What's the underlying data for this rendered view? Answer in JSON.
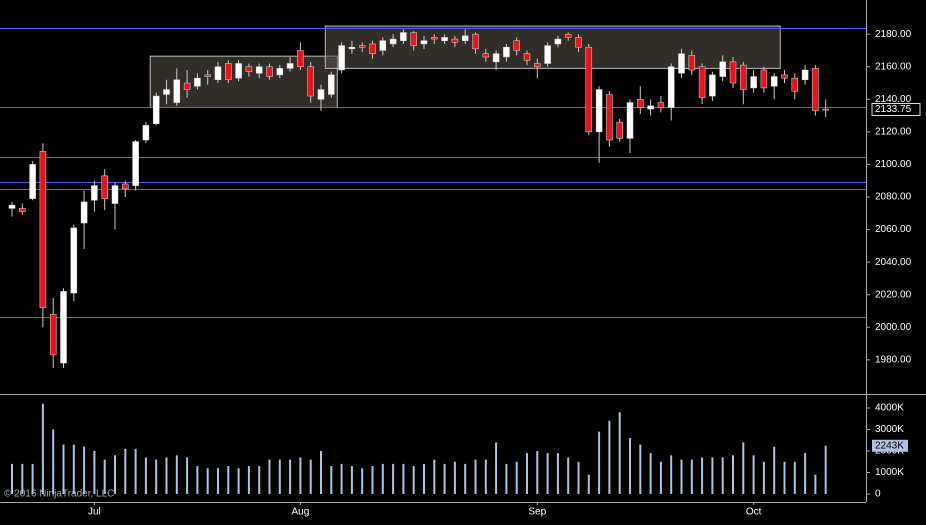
{
  "copyright": "© 2016 NinjaTrader, LLC",
  "chart_data": [
    {
      "type": "candlestick",
      "categories": [
        null,
        null,
        null,
        null,
        null,
        null,
        null,
        null,
        "Jul",
        null,
        null,
        null,
        null,
        null,
        null,
        null,
        null,
        null,
        null,
        null,
        null,
        null,
        null,
        null,
        null,
        null,
        null,
        null,
        "Aug",
        null,
        null,
        null,
        null,
        null,
        null,
        null,
        null,
        null,
        null,
        null,
        null,
        null,
        null,
        null,
        null,
        null,
        null,
        null,
        null,
        null,
        null,
        "Sep",
        null,
        null,
        null,
        null,
        null,
        null,
        null,
        null,
        null,
        null,
        null,
        null,
        null,
        null,
        null,
        null,
        null,
        null,
        null,
        null,
        "Oct",
        null,
        null,
        null,
        null,
        null,
        null,
        null
      ],
      "open": [
        2073,
        2073,
        2079,
        2108,
        2008,
        1978,
        2021,
        2064,
        2078,
        2093,
        2076,
        2088,
        2087,
        2115,
        2125,
        2143,
        2138,
        2150,
        2148,
        2155,
        2152,
        2162,
        2153,
        2160,
        2156,
        2160,
        2155,
        2159,
        2170,
        2160,
        2140,
        2143,
        2158,
        2171,
        2173,
        2174,
        2170,
        2174,
        2176,
        2181,
        2174,
        2178,
        2176,
        2177,
        2176,
        2180,
        2168,
        2163,
        2166,
        2176,
        2168,
        2162,
        2162,
        2174,
        2180,
        2178,
        2172,
        2120,
        2143,
        2126,
        2116,
        2140,
        2134,
        2138,
        2135,
        2156,
        2167,
        2160,
        2142,
        2154,
        2163,
        2161,
        2147,
        2158,
        2148,
        2155,
        2153,
        2152,
        2159,
        2134
      ],
      "high": [
        2077,
        2076,
        2102,
        2113,
        2018,
        2024,
        2063,
        2084,
        2090,
        2097,
        2089,
        2090,
        2115,
        2126,
        2144,
        2152,
        2159,
        2158,
        2156,
        2158,
        2163,
        2164,
        2164,
        2162,
        2162,
        2162,
        2161,
        2166,
        2175,
        2163,
        2149,
        2157,
        2175,
        2176,
        2175,
        2176,
        2178,
        2180,
        2183,
        2182,
        2179,
        2180,
        2180,
        2179,
        2183,
        2181,
        2171,
        2170,
        2174,
        2178,
        2170,
        2165,
        2175,
        2179,
        2181,
        2180,
        2174,
        2148,
        2145,
        2128,
        2140,
        2148,
        2140,
        2142,
        2162,
        2171,
        2170,
        2162,
        2157,
        2167,
        2166,
        2163,
        2158,
        2160,
        2156,
        2158,
        2156,
        2161,
        2161,
        2140
      ],
      "low": [
        2068,
        2069,
        2078,
        2000,
        1975,
        1975,
        2016,
        2048,
        2071,
        2072,
        2060,
        2080,
        2084,
        2113,
        2124,
        2137,
        2136,
        2141,
        2146,
        2149,
        2150,
        2150,
        2151,
        2154,
        2153,
        2152,
        2153,
        2157,
        2158,
        2138,
        2133,
        2141,
        2156,
        2168,
        2169,
        2165,
        2167,
        2172,
        2174,
        2170,
        2171,
        2174,
        2174,
        2172,
        2174,
        2168,
        2163,
        2158,
        2163,
        2167,
        2161,
        2153,
        2160,
        2172,
        2176,
        2169,
        2118,
        2101,
        2111,
        2114,
        2107,
        2131,
        2130,
        2132,
        2127,
        2153,
        2155,
        2137,
        2139,
        2151,
        2147,
        2137,
        2144,
        2144,
        2140,
        2150,
        2140,
        2149,
        2130,
        2129
      ],
      "close": [
        2075,
        2071,
        2100,
        2012,
        1983,
        2022,
        2061,
        2077,
        2087,
        2079,
        2087,
        2085,
        2114,
        2124,
        2142,
        2146,
        2152,
        2146,
        2153,
        2154,
        2160,
        2152,
        2162,
        2157,
        2160,
        2154,
        2159,
        2162,
        2160,
        2142,
        2146,
        2155,
        2173,
        2172,
        2172,
        2168,
        2176,
        2177,
        2181,
        2173,
        2176,
        2177,
        2178,
        2175,
        2179,
        2171,
        2166,
        2168,
        2172,
        2170,
        2164,
        2160,
        2173,
        2177,
        2178,
        2172,
        2120,
        2146,
        2115,
        2116,
        2138,
        2135,
        2136,
        2135,
        2160,
        2168,
        2158,
        2141,
        2155,
        2163,
        2150,
        2146,
        2154,
        2147,
        2154,
        2153,
        2145,
        2158,
        2133,
        2133.75
      ],
      "up_color": "#ffffff",
      "down_color": "#e8141c",
      "ylim": [
        1959,
        2201
      ],
      "yticks": [
        {
          "value": 1980,
          "label": "1980.00"
        },
        {
          "value": 2000,
          "label": "2000.00"
        },
        {
          "value": 2020,
          "label": "2020.00"
        },
        {
          "value": 2040,
          "label": "2040.00"
        },
        {
          "value": 2060,
          "label": "2060.00"
        },
        {
          "value": 2080,
          "label": "2080.00"
        },
        {
          "value": 2100,
          "label": "2100.00"
        },
        {
          "value": 2120,
          "label": "2120.00"
        },
        {
          "value": 2140,
          "label": "2140.00"
        },
        {
          "value": 2160,
          "label": "2160.00"
        },
        {
          "value": 2180,
          "label": "2180.00"
        }
      ],
      "last_price": 2133.75,
      "levels": [
        2183.5,
        2135,
        2104.5,
        2089,
        2085,
        2006
      ],
      "level_color": "#4a5cff",
      "zones": [
        {
          "from": 14,
          "to": 31,
          "top": 2166.5,
          "bottom": 2135
        },
        {
          "from": 31,
          "to": 74,
          "top": 2185,
          "bottom": 2159
        }
      ]
    },
    {
      "type": "bar",
      "values": [
        1400000,
        1400000,
        1400000,
        4200000,
        3000000,
        2300000,
        2300000,
        2200000,
        2000000,
        1600000,
        1800000,
        2100000,
        2100000,
        1700000,
        1600000,
        1700000,
        1800000,
        1700000,
        1300000,
        1200000,
        1200000,
        1300000,
        1200000,
        1300000,
        1300000,
        1600000,
        1600000,
        1600000,
        1700000,
        1600000,
        2000000,
        1300000,
        1400000,
        1300000,
        1200000,
        1300000,
        1400000,
        1400000,
        1400000,
        1300000,
        1400000,
        1600000,
        1400000,
        1500000,
        1400000,
        1600000,
        1600000,
        2400000,
        1400000,
        1500000,
        1900000,
        2000000,
        1900000,
        1900000,
        1700000,
        1500000,
        900000,
        2900000,
        3400000,
        3800000,
        2600000,
        2300000,
        1900000,
        1500000,
        1800000,
        1600000,
        1600000,
        1700000,
        1700000,
        1700000,
        1800000,
        2400000,
        1800000,
        1500000,
        2200000,
        1500000,
        1500000,
        1900000,
        900000,
        2243000
      ],
      "color": "#b0c4de",
      "ylim": [
        -372000,
        4558000
      ],
      "yticks": [
        0,
        {
          "value": 1000000,
          "label": "1000K"
        },
        {
          "value": 2000000,
          "label": "2000K"
        },
        {
          "value": 3000000,
          "label": "3000K"
        },
        {
          "value": 4000000,
          "label": "4000K"
        }
      ],
      "last_value": {
        "value": 2243000,
        "label": "2243K"
      }
    }
  ]
}
